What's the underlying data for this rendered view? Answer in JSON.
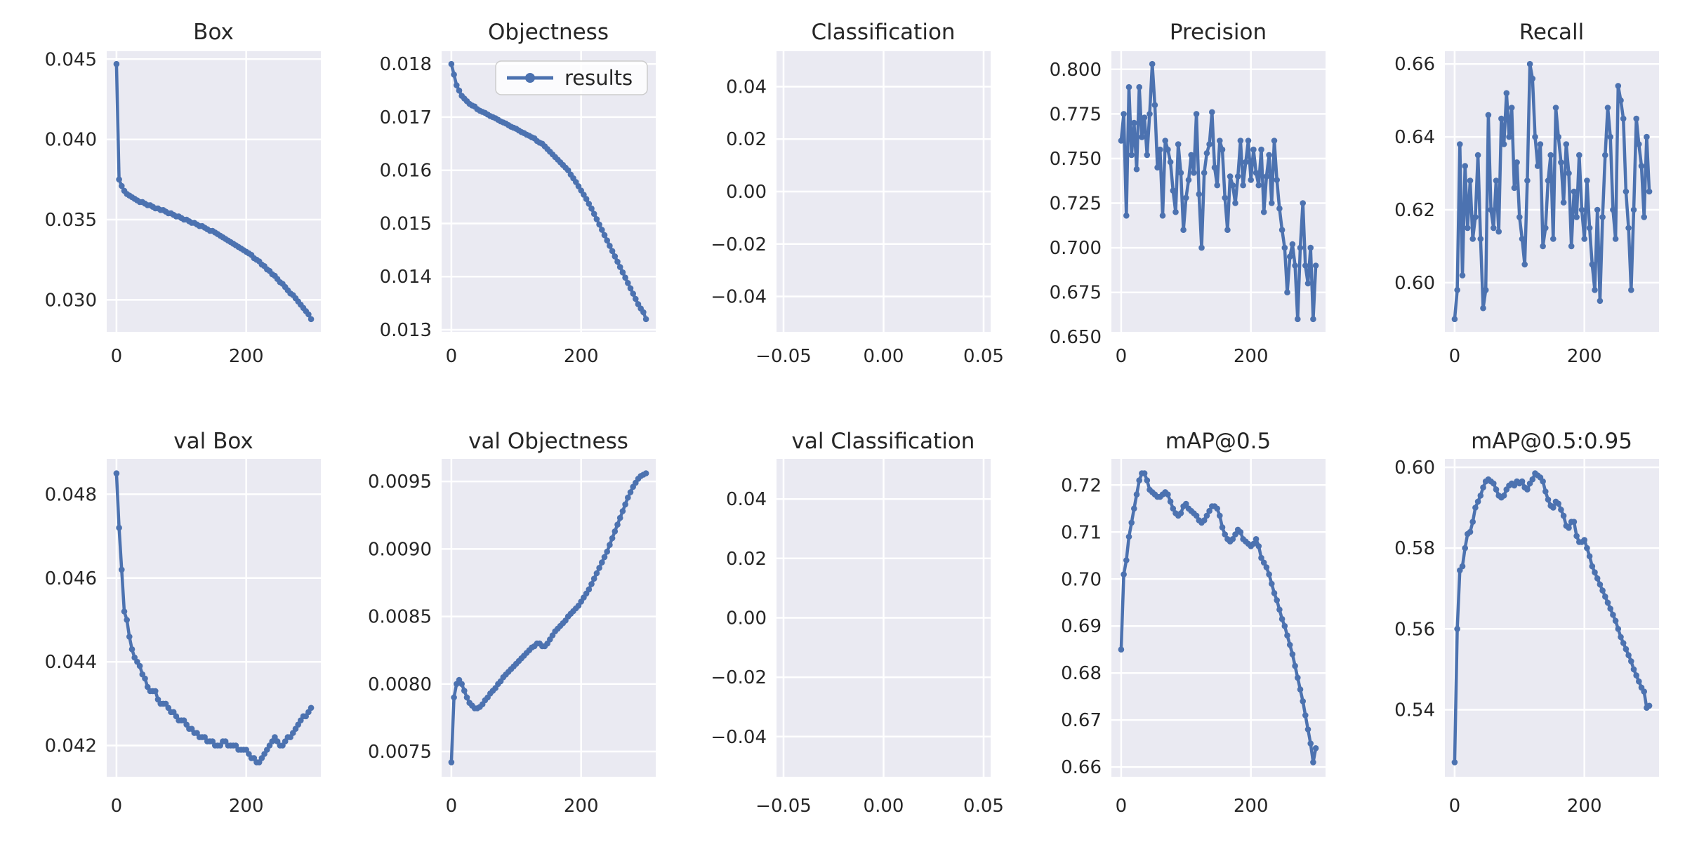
{
  "figure": {
    "background": "#ffffff",
    "panel_color": "#eaeaf2",
    "grid_color": "#ffffff",
    "text_color": "#262626",
    "accent_color": "#4c72b0"
  },
  "legend": {
    "label": "results"
  },
  "chart_data": [
    {
      "id": "box",
      "type": "line",
      "title": "Box",
      "series_name": "results",
      "x_start": 0,
      "x_step": 4,
      "xlim": [
        -15,
        315
      ],
      "ylim": [
        0.028005,
        0.045495
      ],
      "xticks": {
        "values": [
          0,
          200
        ],
        "labels": [
          "0",
          "200"
        ]
      },
      "yticks": {
        "values": [
          0.03,
          0.035,
          0.04,
          0.045
        ],
        "labels": [
          "0.030",
          "0.035",
          "0.040",
          "0.045"
        ]
      },
      "values": [
        0.0447,
        0.0375,
        0.0371,
        0.0368,
        0.0366,
        0.0365,
        0.0364,
        0.0363,
        0.0362,
        0.0361,
        0.0361,
        0.036,
        0.0359,
        0.0359,
        0.0358,
        0.0357,
        0.0357,
        0.0356,
        0.0356,
        0.0355,
        0.0354,
        0.0354,
        0.0353,
        0.0352,
        0.0352,
        0.0351,
        0.035,
        0.035,
        0.0349,
        0.0348,
        0.0348,
        0.0347,
        0.0346,
        0.0346,
        0.0345,
        0.0344,
        0.0343,
        0.0343,
        0.0342,
        0.0341,
        0.034,
        0.0339,
        0.0338,
        0.0337,
        0.0336,
        0.0335,
        0.0334,
        0.0333,
        0.0332,
        0.0331,
        0.033,
        0.0329,
        0.0328,
        0.0326,
        0.0325,
        0.0324,
        0.0322,
        0.0321,
        0.0319,
        0.0318,
        0.0316,
        0.0315,
        0.0313,
        0.0311,
        0.031,
        0.0308,
        0.0306,
        0.0304,
        0.0303,
        0.0301,
        0.0299,
        0.0297,
        0.0295,
        0.0293,
        0.0291,
        0.0288
      ]
    },
    {
      "id": "objectness",
      "type": "line",
      "title": "Objectness",
      "series_name": "results",
      "show_legend": true,
      "x_start": 0,
      "x_step": 4,
      "xlim": [
        -15,
        315
      ],
      "ylim": [
        0.01296,
        0.01824
      ],
      "xticks": {
        "values": [
          0,
          200
        ],
        "labels": [
          "0",
          "200"
        ]
      },
      "yticks": {
        "values": [
          0.013,
          0.014,
          0.015,
          0.016,
          0.017,
          0.018
        ],
        "labels": [
          "0.013",
          "0.014",
          "0.015",
          "0.016",
          "0.017",
          "0.018"
        ]
      },
      "values": [
        0.018,
        0.0178,
        0.0176,
        0.0175,
        0.0174,
        0.01735,
        0.0173,
        0.01725,
        0.01722,
        0.0172,
        0.01715,
        0.01712,
        0.0171,
        0.01708,
        0.01705,
        0.01702,
        0.017,
        0.01698,
        0.01695,
        0.01692,
        0.0169,
        0.01688,
        0.01685,
        0.01682,
        0.0168,
        0.01678,
        0.01675,
        0.01672,
        0.0167,
        0.01667,
        0.01665,
        0.01662,
        0.0166,
        0.01655,
        0.01652,
        0.0165,
        0.01645,
        0.0164,
        0.01635,
        0.0163,
        0.01625,
        0.0162,
        0.01615,
        0.0161,
        0.01605,
        0.016,
        0.01592,
        0.01585,
        0.01578,
        0.0157,
        0.01562,
        0.01554,
        0.01546,
        0.01537,
        0.01528,
        0.01518,
        0.01508,
        0.01498,
        0.01488,
        0.01478,
        0.01468,
        0.01458,
        0.01448,
        0.01438,
        0.01428,
        0.01418,
        0.01408,
        0.01398,
        0.01388,
        0.01378,
        0.01368,
        0.01358,
        0.01348,
        0.0134,
        0.01333,
        0.0132
      ]
    },
    {
      "id": "classification",
      "type": "line",
      "title": "Classification",
      "series_name": "results",
      "x_start": 0,
      "x_step": 4,
      "xlim": [
        -0.0535,
        0.0535
      ],
      "ylim": [
        -0.0535,
        0.0535
      ],
      "xticks": {
        "values": [
          -0.05,
          0.0,
          0.05
        ],
        "labels": [
          "−0.05",
          "0.00",
          "0.05"
        ]
      },
      "yticks": {
        "values": [
          -0.04,
          -0.02,
          0.0,
          0.02,
          0.04
        ],
        "labels": [
          "−0.04",
          "−0.02",
          "0.00",
          "0.02",
          "0.04"
        ]
      },
      "values": []
    },
    {
      "id": "precision",
      "type": "line",
      "title": "Precision",
      "series_name": "results",
      "x_start": 0,
      "x_step": 4,
      "xlim": [
        -15,
        315
      ],
      "ylim": [
        0.65285,
        0.81015
      ],
      "xticks": {
        "values": [
          0,
          200
        ],
        "labels": [
          "0",
          "200"
        ]
      },
      "yticks": {
        "values": [
          0.65,
          0.675,
          0.7,
          0.725,
          0.75,
          0.775,
          0.8
        ],
        "labels": [
          "0.650",
          "0.675",
          "0.700",
          "0.725",
          "0.750",
          "0.775",
          "0.800"
        ]
      },
      "values": [
        0.76,
        0.775,
        0.718,
        0.79,
        0.752,
        0.77,
        0.744,
        0.79,
        0.762,
        0.773,
        0.752,
        0.775,
        0.803,
        0.78,
        0.745,
        0.755,
        0.718,
        0.76,
        0.755,
        0.748,
        0.732,
        0.72,
        0.758,
        0.742,
        0.71,
        0.728,
        0.738,
        0.752,
        0.742,
        0.775,
        0.73,
        0.7,
        0.742,
        0.753,
        0.758,
        0.776,
        0.745,
        0.735,
        0.76,
        0.755,
        0.728,
        0.71,
        0.74,
        0.735,
        0.725,
        0.74,
        0.76,
        0.735,
        0.748,
        0.76,
        0.738,
        0.755,
        0.742,
        0.735,
        0.755,
        0.72,
        0.74,
        0.752,
        0.725,
        0.76,
        0.738,
        0.722,
        0.71,
        0.7,
        0.675,
        0.695,
        0.702,
        0.69,
        0.66,
        0.7,
        0.725,
        0.69,
        0.68,
        0.7,
        0.66,
        0.69
      ]
    },
    {
      "id": "recall",
      "type": "line",
      "title": "Recall",
      "series_name": "results",
      "x_start": 0,
      "x_step": 4,
      "xlim": [
        -15,
        315
      ],
      "ylim": [
        0.5865,
        0.6635
      ],
      "xticks": {
        "values": [
          0,
          200
        ],
        "labels": [
          "0",
          "200"
        ]
      },
      "yticks": {
        "values": [
          0.6,
          0.62,
          0.64,
          0.66
        ],
        "labels": [
          "0.60",
          "0.62",
          "0.64",
          "0.66"
        ]
      },
      "values": [
        0.59,
        0.598,
        0.638,
        0.602,
        0.632,
        0.615,
        0.628,
        0.612,
        0.618,
        0.635,
        0.612,
        0.593,
        0.598,
        0.646,
        0.62,
        0.615,
        0.628,
        0.614,
        0.645,
        0.638,
        0.652,
        0.64,
        0.648,
        0.626,
        0.633,
        0.618,
        0.612,
        0.605,
        0.628,
        0.66,
        0.656,
        0.64,
        0.632,
        0.638,
        0.61,
        0.615,
        0.628,
        0.635,
        0.612,
        0.648,
        0.64,
        0.633,
        0.622,
        0.638,
        0.63,
        0.61,
        0.625,
        0.618,
        0.635,
        0.62,
        0.612,
        0.628,
        0.615,
        0.605,
        0.598,
        0.62,
        0.595,
        0.618,
        0.635,
        0.648,
        0.64,
        0.62,
        0.612,
        0.654,
        0.65,
        0.645,
        0.625,
        0.615,
        0.598,
        0.62,
        0.645,
        0.638,
        0.632,
        0.618,
        0.64,
        0.625
      ]
    },
    {
      "id": "val-box",
      "type": "line",
      "title": "val Box",
      "series_name": "results",
      "x_start": 0,
      "x_step": 4,
      "xlim": [
        -15,
        315
      ],
      "ylim": [
        0.041255,
        0.048845
      ],
      "xticks": {
        "values": [
          0,
          200
        ],
        "labels": [
          "0",
          "200"
        ]
      },
      "yticks": {
        "values": [
          0.042,
          0.044,
          0.046,
          0.048
        ],
        "labels": [
          "0.042",
          "0.044",
          "0.046",
          "0.048"
        ]
      },
      "values": [
        0.0485,
        0.0472,
        0.0462,
        0.0452,
        0.045,
        0.0446,
        0.0443,
        0.0441,
        0.044,
        0.0439,
        0.0437,
        0.0436,
        0.0434,
        0.0433,
        0.0433,
        0.0433,
        0.0431,
        0.043,
        0.043,
        0.043,
        0.0429,
        0.0428,
        0.0428,
        0.0427,
        0.0426,
        0.0426,
        0.0426,
        0.0425,
        0.0424,
        0.0424,
        0.0423,
        0.0423,
        0.0422,
        0.0422,
        0.0422,
        0.0421,
        0.0421,
        0.0421,
        0.042,
        0.042,
        0.042,
        0.0421,
        0.0421,
        0.042,
        0.042,
        0.042,
        0.042,
        0.0419,
        0.0419,
        0.0419,
        0.0419,
        0.0418,
        0.0417,
        0.0417,
        0.0416,
        0.0416,
        0.0417,
        0.0418,
        0.0419,
        0.042,
        0.0421,
        0.0422,
        0.0421,
        0.042,
        0.042,
        0.0421,
        0.0422,
        0.0422,
        0.0423,
        0.0424,
        0.0425,
        0.0426,
        0.0427,
        0.0427,
        0.0428,
        0.0429
      ]
    },
    {
      "id": "val-objectness",
      "type": "line",
      "title": "val Objectness",
      "series_name": "results",
      "x_start": 0,
      "x_step": 4,
      "xlim": [
        -15,
        315
      ],
      "ylim": [
        0.007313,
        0.009667
      ],
      "xticks": {
        "values": [
          0,
          200
        ],
        "labels": [
          "0",
          "200"
        ]
      },
      "yticks": {
        "values": [
          0.0075,
          0.008,
          0.0085,
          0.009,
          0.0095
        ],
        "labels": [
          "0.0075",
          "0.0080",
          "0.0085",
          "0.0090",
          "0.0095"
        ]
      },
      "values": [
        0.00742,
        0.0079,
        0.008,
        0.00803,
        0.008,
        0.00795,
        0.0079,
        0.00786,
        0.00784,
        0.00782,
        0.00782,
        0.00783,
        0.00785,
        0.00788,
        0.0079,
        0.00793,
        0.00795,
        0.00797,
        0.008,
        0.00802,
        0.00805,
        0.00807,
        0.00809,
        0.00811,
        0.00813,
        0.00815,
        0.00817,
        0.00819,
        0.00821,
        0.00823,
        0.00825,
        0.00827,
        0.00828,
        0.0083,
        0.0083,
        0.00828,
        0.00828,
        0.0083,
        0.00833,
        0.00836,
        0.00839,
        0.00841,
        0.00843,
        0.00845,
        0.00847,
        0.0085,
        0.00852,
        0.00854,
        0.00856,
        0.00858,
        0.00861,
        0.00864,
        0.00867,
        0.0087,
        0.00874,
        0.00878,
        0.00882,
        0.00886,
        0.0089,
        0.00894,
        0.00898,
        0.00903,
        0.00908,
        0.00913,
        0.00918,
        0.00923,
        0.00928,
        0.00933,
        0.00938,
        0.00942,
        0.00946,
        0.00949,
        0.00952,
        0.00954,
        0.00955,
        0.00956
      ]
    },
    {
      "id": "val-classification",
      "type": "line",
      "title": "val Classification",
      "series_name": "results",
      "x_start": 0,
      "x_step": 4,
      "xlim": [
        -0.0535,
        0.0535
      ],
      "ylim": [
        -0.0535,
        0.0535
      ],
      "xticks": {
        "values": [
          -0.05,
          0.0,
          0.05
        ],
        "labels": [
          "−0.05",
          "0.00",
          "0.05"
        ]
      },
      "yticks": {
        "values": [
          -0.04,
          -0.02,
          0.0,
          0.02,
          0.04
        ],
        "labels": [
          "−0.04",
          "−0.02",
          "0.00",
          "0.02",
          "0.04"
        ]
      },
      "values": []
    },
    {
      "id": "map05",
      "type": "line",
      "title": "mAP@0.5",
      "series_name": "results",
      "x_start": 0,
      "x_step": 4,
      "xlim": [
        -15,
        315
      ],
      "ylim": [
        0.657925,
        0.725575
      ],
      "xticks": {
        "values": [
          0,
          200
        ],
        "labels": [
          "0",
          "200"
        ]
      },
      "yticks": {
        "values": [
          0.66,
          0.67,
          0.68,
          0.69,
          0.7,
          0.71,
          0.72
        ],
        "labels": [
          "0.66",
          "0.67",
          "0.68",
          "0.69",
          "0.70",
          "0.71",
          "0.72"
        ]
      },
      "values": [
        0.685,
        0.701,
        0.704,
        0.709,
        0.712,
        0.715,
        0.718,
        0.721,
        0.7225,
        0.7225,
        0.721,
        0.719,
        0.7185,
        0.718,
        0.7175,
        0.7175,
        0.718,
        0.7185,
        0.718,
        0.7165,
        0.715,
        0.714,
        0.7135,
        0.714,
        0.7155,
        0.716,
        0.715,
        0.7145,
        0.714,
        0.7135,
        0.7125,
        0.712,
        0.7125,
        0.7135,
        0.7145,
        0.7155,
        0.7155,
        0.715,
        0.7135,
        0.711,
        0.7095,
        0.7085,
        0.708,
        0.7085,
        0.7095,
        0.7105,
        0.71,
        0.7085,
        0.708,
        0.7075,
        0.707,
        0.7075,
        0.7085,
        0.707,
        0.7045,
        0.7035,
        0.7025,
        0.701,
        0.699,
        0.697,
        0.6955,
        0.6935,
        0.6915,
        0.69,
        0.688,
        0.686,
        0.684,
        0.6815,
        0.679,
        0.6765,
        0.674,
        0.671,
        0.668,
        0.665,
        0.661,
        0.664
      ]
    },
    {
      "id": "map05-095",
      "type": "line",
      "title": "mAP@0.5:0.95",
      "series_name": "results",
      "x_start": 0,
      "x_step": 4,
      "xlim": [
        -15,
        315
      ],
      "ylim": [
        0.523425,
        0.602075
      ],
      "xticks": {
        "values": [
          0,
          200
        ],
        "labels": [
          "0",
          "200"
        ]
      },
      "yticks": {
        "values": [
          0.54,
          0.56,
          0.58,
          0.6
        ],
        "labels": [
          "0.54",
          "0.56",
          "0.58",
          "0.60"
        ]
      },
      "values": [
        0.527,
        0.56,
        0.5745,
        0.5755,
        0.58,
        0.5835,
        0.584,
        0.5865,
        0.59,
        0.5915,
        0.593,
        0.595,
        0.5965,
        0.597,
        0.5965,
        0.596,
        0.5945,
        0.593,
        0.5925,
        0.593,
        0.5945,
        0.5955,
        0.596,
        0.5955,
        0.5965,
        0.596,
        0.5965,
        0.595,
        0.5945,
        0.596,
        0.597,
        0.5985,
        0.598,
        0.5975,
        0.5965,
        0.594,
        0.592,
        0.5905,
        0.59,
        0.5915,
        0.591,
        0.5895,
        0.588,
        0.5855,
        0.585,
        0.5865,
        0.5865,
        0.583,
        0.5815,
        0.5815,
        0.582,
        0.58,
        0.578,
        0.5755,
        0.574,
        0.5725,
        0.571,
        0.5695,
        0.568,
        0.5665,
        0.565,
        0.5635,
        0.562,
        0.56,
        0.558,
        0.5565,
        0.555,
        0.5535,
        0.552,
        0.55,
        0.5485,
        0.547,
        0.5455,
        0.5445,
        0.5405,
        0.541
      ]
    }
  ]
}
